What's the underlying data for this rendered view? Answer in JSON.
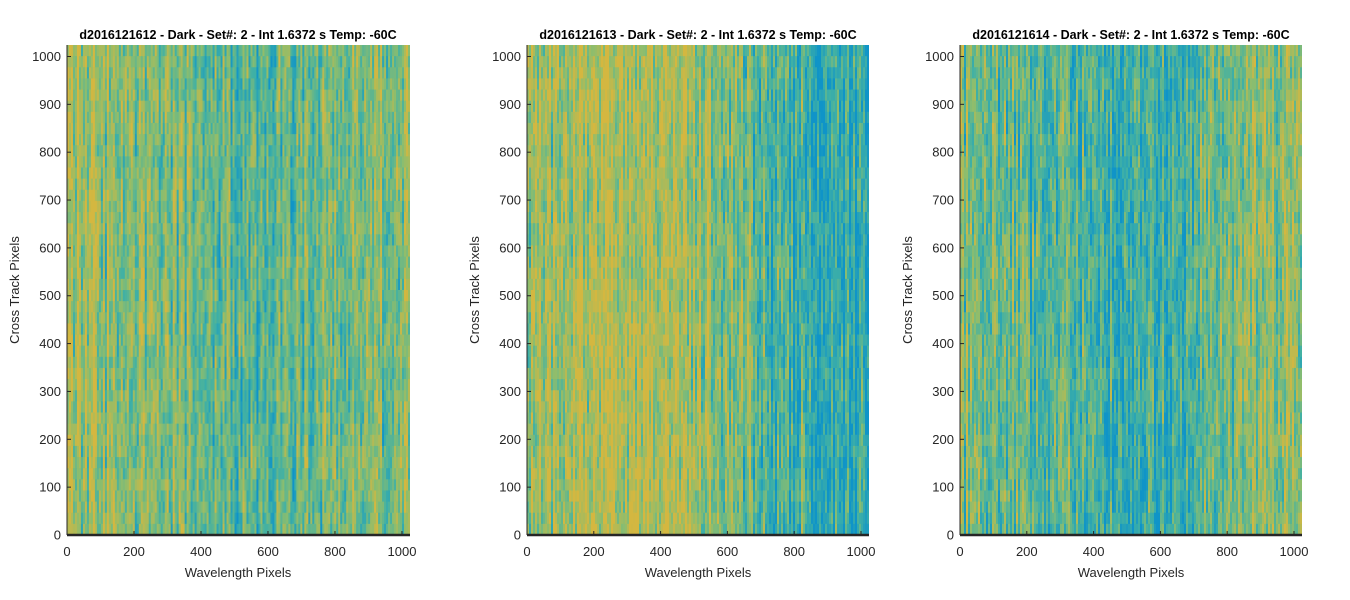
{
  "chart_data": [
    {
      "type": "heatmap",
      "title": "d2016121612 - Dark - Set#: 2 - Int 1.6372 s Temp: -60C",
      "xlabel": "Wavelength Pixels",
      "ylabel": "Cross Track Pixels",
      "xlim": [
        0,
        1024
      ],
      "ylim": [
        0,
        1024
      ],
      "x_ticks": [
        "0",
        "200",
        "400",
        "600",
        "800",
        "1000"
      ],
      "y_ticks": [
        "0",
        "100",
        "200",
        "300",
        "400",
        "500",
        "600",
        "700",
        "800",
        "900",
        "1000"
      ],
      "colormap": [
        "#0f94c8",
        "#3fb0a6",
        "#8cbd6e",
        "#d4b740"
      ],
      "grid": false,
      "value_profile": {
        "x": [
          0,
          200,
          400,
          600,
          800,
          1000
        ],
        "relative_level": [
          0.75,
          0.65,
          0.5,
          0.45,
          0.6,
          0.65
        ]
      }
    },
    {
      "type": "heatmap",
      "title": "d2016121613 - Dark - Set#: 2 - Int 1.6372 s Temp: -60C",
      "xlabel": "Wavelength Pixels",
      "ylabel": "Cross Track Pixels",
      "xlim": [
        0,
        1024
      ],
      "ylim": [
        0,
        1024
      ],
      "x_ticks": [
        "0",
        "200",
        "400",
        "600",
        "800",
        "1000"
      ],
      "y_ticks": [
        "0",
        "100",
        "200",
        "300",
        "400",
        "500",
        "600",
        "700",
        "800",
        "900",
        "1000"
      ],
      "colormap": [
        "#0f94c8",
        "#3fb0a6",
        "#8cbd6e",
        "#d4b740"
      ],
      "grid": false,
      "value_profile": {
        "x": [
          0,
          200,
          400,
          600,
          800,
          1000
        ],
        "relative_level": [
          0.7,
          0.85,
          0.85,
          0.65,
          0.3,
          0.25
        ]
      }
    },
    {
      "type": "heatmap",
      "title": "d2016121614 - Dark - Set#: 2 - Int 1.6372 s Temp: -60C",
      "xlabel": "Wavelength Pixels",
      "ylabel": "Cross Track Pixels",
      "xlim": [
        0,
        1024
      ],
      "ylim": [
        0,
        1024
      ],
      "x_ticks": [
        "0",
        "200",
        "400",
        "600",
        "800",
        "1000"
      ],
      "y_ticks": [
        "0",
        "100",
        "200",
        "300",
        "400",
        "500",
        "600",
        "700",
        "800",
        "900",
        "1000"
      ],
      "colormap": [
        "#0f94c8",
        "#3fb0a6",
        "#8cbd6e",
        "#d4b740"
      ],
      "grid": false,
      "value_profile": {
        "x": [
          0,
          200,
          400,
          600,
          800,
          1000
        ],
        "relative_level": [
          0.6,
          0.5,
          0.35,
          0.3,
          0.55,
          0.7
        ]
      }
    }
  ]
}
